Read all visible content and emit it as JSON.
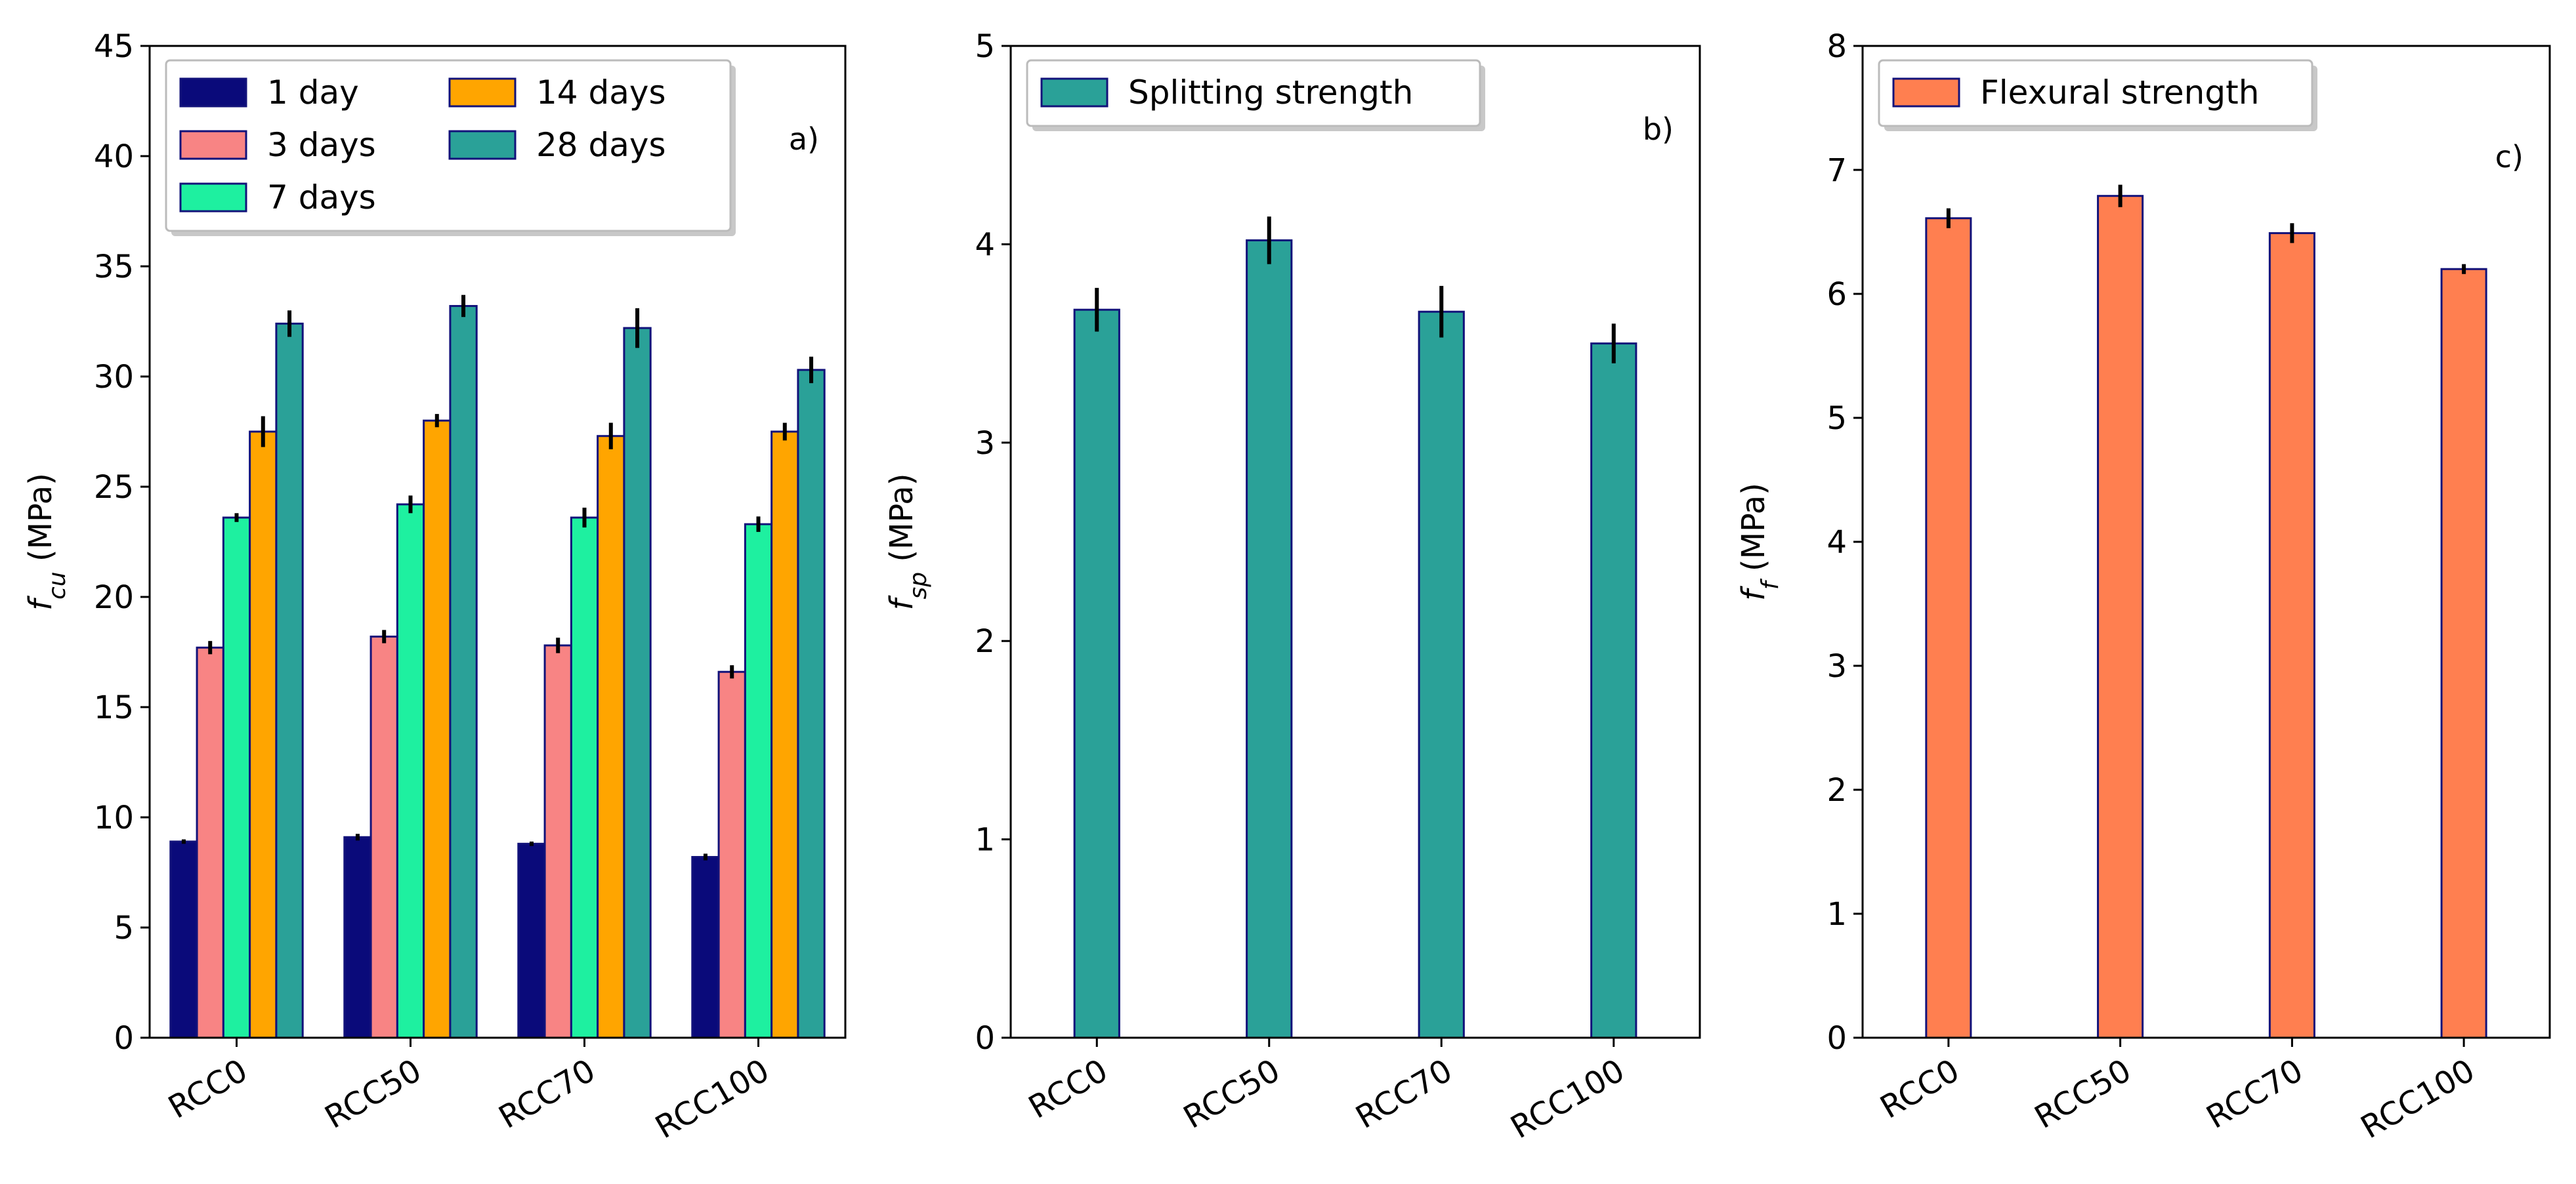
{
  "chart_data": [
    {
      "type": "bar",
      "panel_tag": "a)",
      "ylabel_main": "f",
      "ylabel_sub": "cu",
      "ylabel_unit": " (MPa)",
      "ylim": [
        0,
        45
      ],
      "yticks": [
        "0",
        "5",
        "10",
        "15",
        "20",
        "25",
        "30",
        "35",
        "40",
        "45"
      ],
      "categories": [
        "RCC0",
        "RCC50",
        "RCC70",
        "RCC100"
      ],
      "legend_position": "top-left",
      "series": [
        {
          "name": "1 day",
          "color": "#0a0a7a",
          "values": [
            8.9,
            9.1,
            8.8,
            8.2
          ],
          "errors": [
            0.1,
            0.15,
            0.1,
            0.15
          ]
        },
        {
          "name": "3 days",
          "color": "#f88484",
          "values": [
            17.7,
            18.2,
            17.8,
            16.6
          ],
          "errors": [
            0.3,
            0.3,
            0.35,
            0.3
          ]
        },
        {
          "name": "7 days",
          "color": "#1ef0a0",
          "values": [
            23.6,
            24.2,
            23.6,
            23.3
          ],
          "errors": [
            0.2,
            0.4,
            0.45,
            0.35
          ]
        },
        {
          "name": "14 days",
          "color": "#ffa500",
          "values": [
            27.5,
            28.0,
            27.3,
            27.5
          ],
          "errors": [
            0.7,
            0.3,
            0.6,
            0.4
          ]
        },
        {
          "name": "28 days",
          "color": "#2aa198",
          "values": [
            32.4,
            33.2,
            32.2,
            30.3
          ],
          "errors": [
            0.6,
            0.5,
            0.9,
            0.6
          ]
        }
      ]
    },
    {
      "type": "bar",
      "panel_tag": "b)",
      "ylabel_main": "f",
      "ylabel_sub": "sp",
      "ylabel_unit": " (MPa)",
      "ylim": [
        0,
        5
      ],
      "yticks": [
        "0",
        "1",
        "2",
        "3",
        "4",
        "5"
      ],
      "categories": [
        "RCC0",
        "RCC50",
        "RCC70",
        "RCC100"
      ],
      "legend_position": "top-left",
      "series": [
        {
          "name": "Splitting strength",
          "color": "#2aa198",
          "values": [
            3.67,
            4.02,
            3.66,
            3.5
          ],
          "errors": [
            0.11,
            0.12,
            0.13,
            0.1
          ]
        }
      ]
    },
    {
      "type": "bar",
      "panel_tag": "c)",
      "ylabel_main": "f",
      "ylabel_sub": "f",
      "ylabel_unit": " (MPa)",
      "ylim": [
        0,
        8
      ],
      "yticks": [
        "0",
        "1",
        "2",
        "3",
        "4",
        "5",
        "6",
        "7",
        "8"
      ],
      "categories": [
        "RCC0",
        "RCC50",
        "RCC70",
        "RCC100"
      ],
      "legend_position": "top-left",
      "series": [
        {
          "name": "Flexural strength",
          "color": "#ff7f50",
          "values": [
            6.61,
            6.79,
            6.49,
            6.2
          ],
          "errors": [
            0.08,
            0.09,
            0.08,
            0.04
          ]
        }
      ]
    }
  ]
}
